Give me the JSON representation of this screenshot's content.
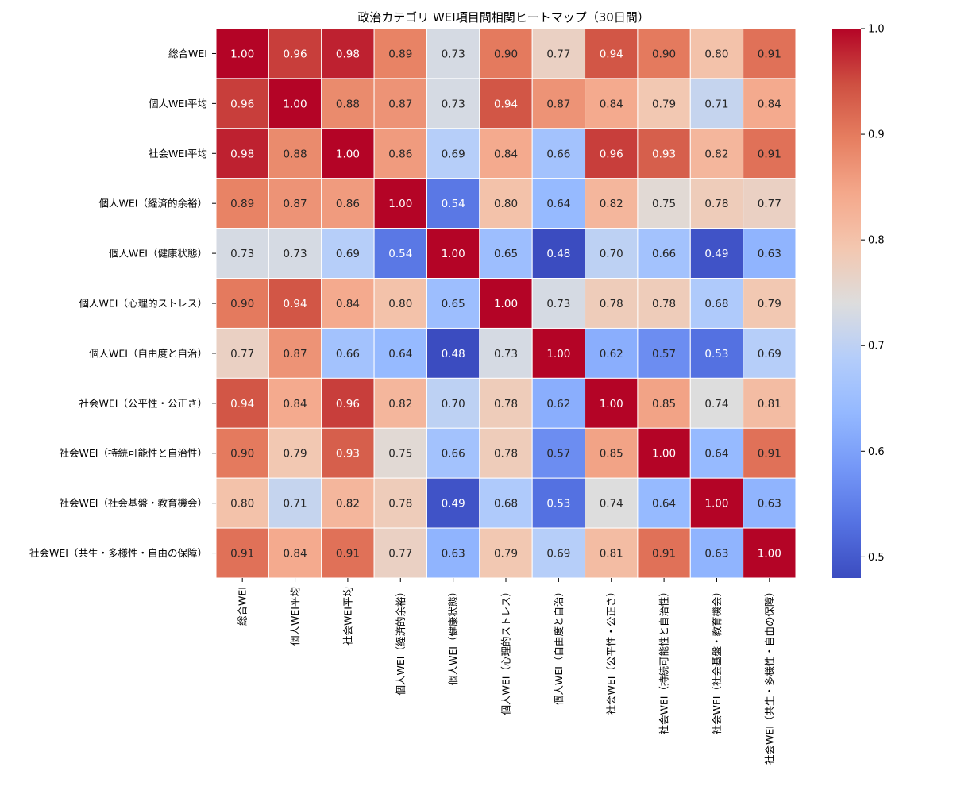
{
  "chart_data": {
    "type": "heatmap",
    "title": "政治カテゴリ WEI項目間相関ヒートマップ（30日間）",
    "labels": [
      "総合WEI",
      "個人WEI平均",
      "社会WEI平均",
      "個人WEI（経済的余裕）",
      "個人WEI（健康状態）",
      "個人WEI（心理的ストレス）",
      "個人WEI（自由度と自治）",
      "社会WEI（公平性・公正さ）",
      "社会WEI（持続可能性と自治性）",
      "社会WEI（社会基盤・教育機会）",
      "社会WEI（共生・多様性・自由の保障）"
    ],
    "matrix": [
      [
        1.0,
        0.96,
        0.98,
        0.89,
        0.73,
        0.9,
        0.77,
        0.94,
        0.9,
        0.8,
        0.91
      ],
      [
        0.96,
        1.0,
        0.88,
        0.87,
        0.73,
        0.94,
        0.87,
        0.84,
        0.79,
        0.71,
        0.84
      ],
      [
        0.98,
        0.88,
        1.0,
        0.86,
        0.69,
        0.84,
        0.66,
        0.96,
        0.93,
        0.82,
        0.91
      ],
      [
        0.89,
        0.87,
        0.86,
        1.0,
        0.54,
        0.8,
        0.64,
        0.82,
        0.75,
        0.78,
        0.77
      ],
      [
        0.73,
        0.73,
        0.69,
        0.54,
        1.0,
        0.65,
        0.48,
        0.7,
        0.66,
        0.49,
        0.63
      ],
      [
        0.9,
        0.94,
        0.84,
        0.8,
        0.65,
        1.0,
        0.73,
        0.78,
        0.78,
        0.68,
        0.79
      ],
      [
        0.77,
        0.87,
        0.66,
        0.64,
        0.48,
        0.73,
        1.0,
        0.62,
        0.57,
        0.53,
        0.69
      ],
      [
        0.94,
        0.84,
        0.96,
        0.82,
        0.7,
        0.78,
        0.62,
        1.0,
        0.85,
        0.74,
        0.81
      ],
      [
        0.9,
        0.79,
        0.93,
        0.75,
        0.66,
        0.78,
        0.57,
        0.85,
        1.0,
        0.64,
        0.91
      ],
      [
        0.8,
        0.71,
        0.82,
        0.78,
        0.49,
        0.68,
        0.53,
        0.74,
        0.64,
        1.0,
        0.63
      ],
      [
        0.91,
        0.84,
        0.91,
        0.77,
        0.63,
        0.79,
        0.69,
        0.81,
        0.91,
        0.63,
        1.0
      ]
    ],
    "colormap": "coolwarm",
    "vmin": 0.48,
    "vmax": 1.0,
    "colorbar_ticks": [
      0.5,
      0.6,
      0.7,
      0.8,
      0.9,
      1.0
    ],
    "colorbar_tick_labels": [
      "0.5",
      "0.6",
      "0.7",
      "0.8",
      "0.9",
      "1.0"
    ],
    "annotation_format": "2dp"
  }
}
